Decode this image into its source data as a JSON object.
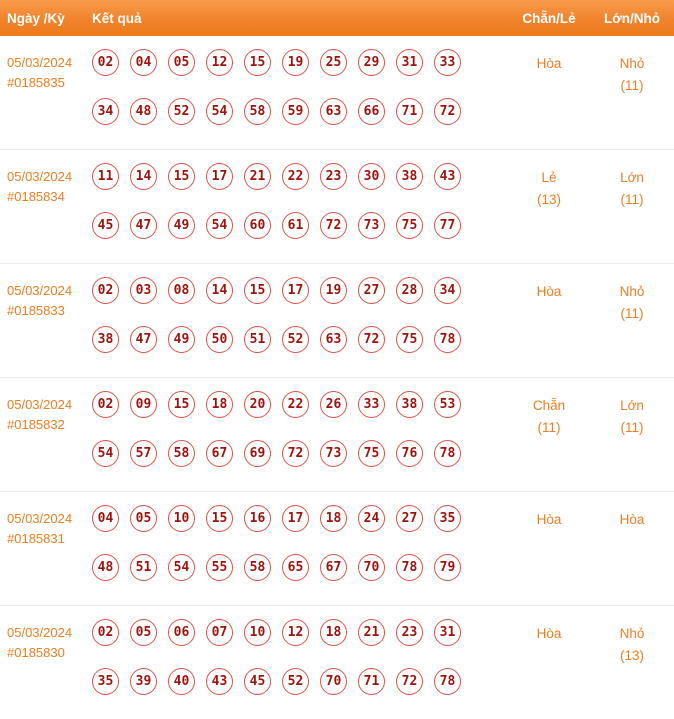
{
  "header": {
    "date": "Ngày /Kỳ",
    "result": "Kết quả",
    "even_odd": "Chẵn/Lẻ",
    "big_small": "Lớn/Nhỏ"
  },
  "colors": {
    "header_bg": "#f0832c",
    "accent_orange": "#f07d1f",
    "ball_border": "#df5349",
    "ball_text": "#9d120b",
    "row_divider": "#e9e9e9"
  },
  "rows": [
    {
      "date": "05/03/2024",
      "draw": "#0185835",
      "line1": [
        "02",
        "04",
        "05",
        "12",
        "15",
        "19",
        "25",
        "29",
        "31",
        "33"
      ],
      "line2": [
        "34",
        "48",
        "52",
        "54",
        "58",
        "59",
        "63",
        "66",
        "71",
        "72"
      ],
      "even_odd": "Hòa",
      "even_odd_note": "",
      "big_small": "Nhỏ",
      "big_small_note": "(11)"
    },
    {
      "date": "05/03/2024",
      "draw": "#0185834",
      "line1": [
        "11",
        "14",
        "15",
        "17",
        "21",
        "22",
        "23",
        "30",
        "38",
        "43"
      ],
      "line2": [
        "45",
        "47",
        "49",
        "54",
        "60",
        "61",
        "72",
        "73",
        "75",
        "77"
      ],
      "even_odd": "Lẻ",
      "even_odd_note": "(13)",
      "big_small": "Lớn",
      "big_small_note": "(11)"
    },
    {
      "date": "05/03/2024",
      "draw": "#0185833",
      "line1": [
        "02",
        "03",
        "08",
        "14",
        "15",
        "17",
        "19",
        "27",
        "28",
        "34"
      ],
      "line2": [
        "38",
        "47",
        "49",
        "50",
        "51",
        "52",
        "63",
        "72",
        "75",
        "78"
      ],
      "even_odd": "Hòa",
      "even_odd_note": "",
      "big_small": "Nhỏ",
      "big_small_note": "(11)"
    },
    {
      "date": "05/03/2024",
      "draw": "#0185832",
      "line1": [
        "02",
        "09",
        "15",
        "18",
        "20",
        "22",
        "26",
        "33",
        "38",
        "53"
      ],
      "line2": [
        "54",
        "57",
        "58",
        "67",
        "69",
        "72",
        "73",
        "75",
        "76",
        "78"
      ],
      "even_odd": "Chẵn",
      "even_odd_note": "(11)",
      "big_small": "Lớn",
      "big_small_note": "(11)"
    },
    {
      "date": "05/03/2024",
      "draw": "#0185831",
      "line1": [
        "04",
        "05",
        "10",
        "15",
        "16",
        "17",
        "18",
        "24",
        "27",
        "35"
      ],
      "line2": [
        "48",
        "51",
        "54",
        "55",
        "58",
        "65",
        "67",
        "70",
        "78",
        "79"
      ],
      "even_odd": "Hòa",
      "even_odd_note": "",
      "big_small": "Hòa",
      "big_small_note": ""
    },
    {
      "date": "05/03/2024",
      "draw": "#0185830",
      "line1": [
        "02",
        "05",
        "06",
        "07",
        "10",
        "12",
        "18",
        "21",
        "23",
        "31"
      ],
      "line2": [
        "35",
        "39",
        "40",
        "43",
        "45",
        "52",
        "70",
        "71",
        "72",
        "78"
      ],
      "even_odd": "Hòa",
      "even_odd_note": "",
      "big_small": "Nhỏ",
      "big_small_note": "(13)"
    }
  ]
}
